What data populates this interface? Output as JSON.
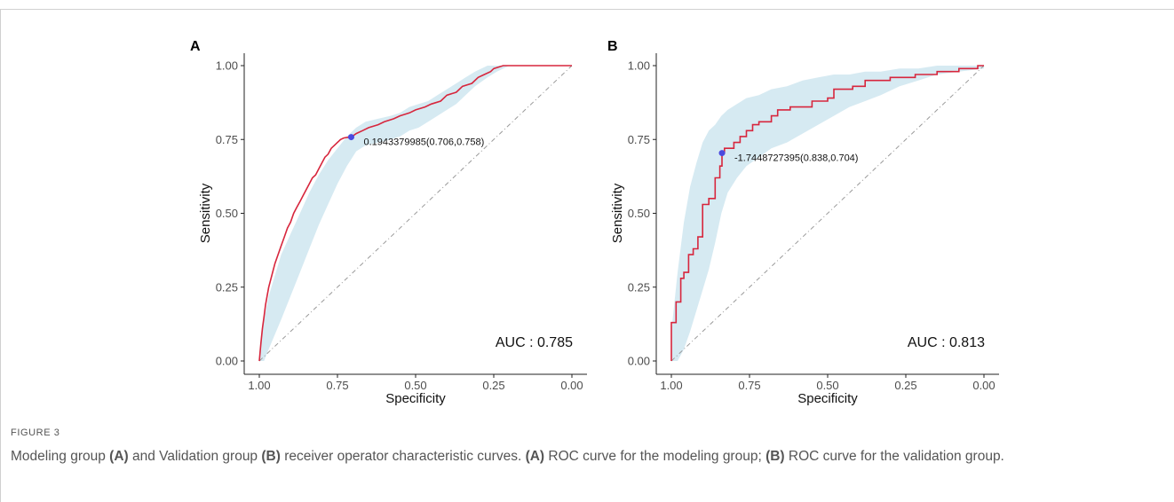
{
  "figure_label": "FIGURE 3",
  "caption_parts": [
    {
      "text": "Modeling group ",
      "bold": false
    },
    {
      "text": "(A)",
      "bold": true
    },
    {
      "text": " and Validation group ",
      "bold": false
    },
    {
      "text": "(B)",
      "bold": true
    },
    {
      "text": " receiver operator characteristic curves. ",
      "bold": false
    },
    {
      "text": "(A)",
      "bold": true
    },
    {
      "text": " ROC curve for the modeling group; ",
      "bold": false
    },
    {
      "text": "(B)",
      "bold": true
    },
    {
      "text": " ROC curve for the validation group.",
      "bold": false
    }
  ],
  "colors": {
    "curve": "#d7263d",
    "band": "#cfe6f0",
    "point": "#4a4adf",
    "diagonal": "#9a9a9a",
    "axis": "#222222"
  },
  "chart_data": [
    {
      "type": "line",
      "panel_label": "A",
      "xlabel": "Specificity",
      "ylabel": "Sensitivity",
      "x_reversed": true,
      "xlim": [
        1.0,
        0.0
      ],
      "ylim": [
        0.0,
        1.0
      ],
      "xticks": [
        "1.00",
        "0.75",
        "0.50",
        "0.25",
        "0.00"
      ],
      "yticks": [
        "0.00",
        "0.25",
        "0.50",
        "0.75",
        "1.00"
      ],
      "grid": false,
      "auc_label": "AUC : 0.785",
      "threshold_point": {
        "specificity": 0.706,
        "sensitivity": 0.758
      },
      "threshold_label": "0.1943379985(0.706,0.758)",
      "curve": {
        "specificity": [
          1.0,
          0.995,
          0.99,
          0.985,
          0.98,
          0.975,
          0.97,
          0.96,
          0.95,
          0.94,
          0.93,
          0.92,
          0.91,
          0.9,
          0.89,
          0.88,
          0.87,
          0.86,
          0.85,
          0.84,
          0.83,
          0.82,
          0.81,
          0.8,
          0.79,
          0.78,
          0.77,
          0.76,
          0.75,
          0.74,
          0.73,
          0.72,
          0.706,
          0.69,
          0.67,
          0.65,
          0.62,
          0.6,
          0.57,
          0.55,
          0.52,
          0.5,
          0.47,
          0.45,
          0.42,
          0.4,
          0.37,
          0.35,
          0.32,
          0.3,
          0.28,
          0.26,
          0.25,
          0.22,
          0.2,
          0.1,
          0.0
        ],
        "sensitivity": [
          0.0,
          0.06,
          0.11,
          0.15,
          0.19,
          0.22,
          0.25,
          0.29,
          0.33,
          0.36,
          0.39,
          0.42,
          0.45,
          0.47,
          0.5,
          0.52,
          0.54,
          0.56,
          0.58,
          0.6,
          0.62,
          0.63,
          0.65,
          0.67,
          0.69,
          0.7,
          0.72,
          0.73,
          0.74,
          0.75,
          0.755,
          0.757,
          0.758,
          0.77,
          0.78,
          0.79,
          0.8,
          0.81,
          0.82,
          0.83,
          0.84,
          0.85,
          0.86,
          0.87,
          0.88,
          0.9,
          0.91,
          0.93,
          0.94,
          0.96,
          0.97,
          0.98,
          0.99,
          1.0,
          1.0,
          1.0,
          1.0
        ]
      },
      "ci_upper": [
        0.03,
        0.14,
        0.22,
        0.29,
        0.36,
        0.43,
        0.5,
        0.57,
        0.63,
        0.68,
        0.72,
        0.76,
        0.79,
        0.81,
        0.82,
        0.83,
        0.84,
        0.86,
        0.87,
        0.88,
        0.9,
        0.92,
        0.94,
        0.96,
        0.98,
        1.0,
        1.0,
        1.0,
        1.0
      ],
      "ci_lower": [
        0.0,
        0.0,
        0.04,
        0.09,
        0.14,
        0.22,
        0.3,
        0.38,
        0.46,
        0.53,
        0.6,
        0.66,
        0.71,
        0.73,
        0.74,
        0.75,
        0.76,
        0.78,
        0.79,
        0.81,
        0.83,
        0.85,
        0.87,
        0.9,
        0.93,
        0.96,
        0.98,
        1.0,
        1.0
      ],
      "ci_specificity": [
        1.0,
        0.985,
        0.97,
        0.95,
        0.93,
        0.9,
        0.87,
        0.84,
        0.81,
        0.78,
        0.75,
        0.72,
        0.69,
        0.66,
        0.62,
        0.58,
        0.55,
        0.52,
        0.49,
        0.46,
        0.43,
        0.4,
        0.37,
        0.34,
        0.31,
        0.27,
        0.24,
        0.2,
        0.0
      ]
    },
    {
      "type": "line",
      "panel_label": "B",
      "xlabel": "Specificity",
      "ylabel": "Sensitivity",
      "x_reversed": true,
      "xlim": [
        1.0,
        0.0
      ],
      "ylim": [
        0.0,
        1.0
      ],
      "xticks": [
        "1.00",
        "0.75",
        "0.50",
        "0.25",
        "0.00"
      ],
      "yticks": [
        "0.00",
        "0.25",
        "0.50",
        "0.75",
        "1.00"
      ],
      "grid": false,
      "auc_label": "AUC : 0.813",
      "threshold_point": {
        "specificity": 0.838,
        "sensitivity": 0.704
      },
      "threshold_label": "-1.7448727395(0.838,0.704)",
      "curve": {
        "specificity": [
          1.0,
          1.0,
          0.985,
          0.985,
          0.97,
          0.97,
          0.96,
          0.96,
          0.945,
          0.945,
          0.93,
          0.93,
          0.915,
          0.915,
          0.9,
          0.9,
          0.88,
          0.88,
          0.86,
          0.86,
          0.845,
          0.845,
          0.838,
          0.838,
          0.83,
          0.83,
          0.8,
          0.8,
          0.78,
          0.78,
          0.76,
          0.76,
          0.74,
          0.74,
          0.72,
          0.72,
          0.68,
          0.68,
          0.66,
          0.66,
          0.62,
          0.62,
          0.55,
          0.55,
          0.5,
          0.5,
          0.48,
          0.48,
          0.42,
          0.42,
          0.38,
          0.38,
          0.3,
          0.3,
          0.22,
          0.22,
          0.15,
          0.15,
          0.08,
          0.08,
          0.02,
          0.02,
          0.0
        ],
        "sensitivity": [
          0.0,
          0.13,
          0.13,
          0.2,
          0.2,
          0.28,
          0.28,
          0.3,
          0.3,
          0.36,
          0.36,
          0.38,
          0.38,
          0.42,
          0.42,
          0.53,
          0.53,
          0.55,
          0.55,
          0.62,
          0.62,
          0.66,
          0.66,
          0.704,
          0.704,
          0.72,
          0.72,
          0.74,
          0.74,
          0.76,
          0.76,
          0.78,
          0.78,
          0.8,
          0.8,
          0.81,
          0.81,
          0.83,
          0.83,
          0.85,
          0.85,
          0.86,
          0.86,
          0.88,
          0.88,
          0.89,
          0.89,
          0.92,
          0.92,
          0.93,
          0.93,
          0.95,
          0.95,
          0.96,
          0.96,
          0.97,
          0.97,
          0.98,
          0.98,
          0.99,
          0.99,
          1.0,
          1.0
        ]
      },
      "ci_specificity": [
        1.0,
        0.98,
        0.96,
        0.94,
        0.92,
        0.9,
        0.88,
        0.86,
        0.84,
        0.82,
        0.79,
        0.76,
        0.72,
        0.68,
        0.63,
        0.58,
        0.53,
        0.48,
        0.43,
        0.38,
        0.33,
        0.27,
        0.21,
        0.15,
        0.08,
        0.0
      ],
      "ci_upper": [
        0.1,
        0.3,
        0.47,
        0.59,
        0.67,
        0.74,
        0.78,
        0.8,
        0.83,
        0.85,
        0.87,
        0.89,
        0.9,
        0.92,
        0.93,
        0.95,
        0.96,
        0.97,
        0.97,
        0.98,
        0.98,
        0.99,
        0.99,
        1.0,
        1.0,
        1.0
      ],
      "ci_lower": [
        0.0,
        0.0,
        0.04,
        0.1,
        0.17,
        0.24,
        0.31,
        0.4,
        0.5,
        0.57,
        0.62,
        0.66,
        0.69,
        0.72,
        0.74,
        0.77,
        0.8,
        0.83,
        0.86,
        0.88,
        0.9,
        0.93,
        0.95,
        0.97,
        0.98,
        0.99
      ]
    }
  ]
}
